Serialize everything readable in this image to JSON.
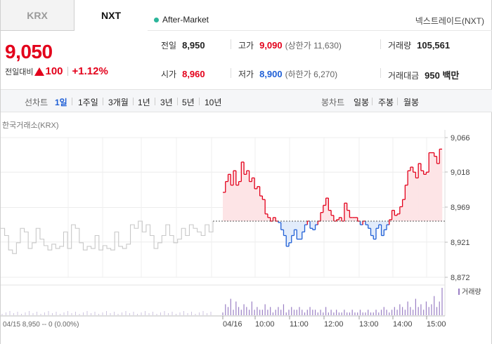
{
  "tabs": {
    "krx": "KRX",
    "nxt": "NXT"
  },
  "session": {
    "label": "After-Market"
  },
  "source_label": "넥스트레이드(NXT)",
  "price": {
    "current": "9,050",
    "change_label": "전일대비",
    "change_amount": "100",
    "change_percent": "+1.12%"
  },
  "stats": {
    "prev_close": {
      "label": "전일",
      "value": "8,950"
    },
    "open": {
      "label": "시가",
      "value": "8,960"
    },
    "high": {
      "label": "고가",
      "value": "9,090",
      "limit": "(상한가 11,630)"
    },
    "low": {
      "label": "저가",
      "value": "8,900",
      "limit": "(하한가 6,270)"
    },
    "volume": {
      "label": "거래량",
      "value": "105,561"
    },
    "amount": {
      "label": "거래대금",
      "value": "950 백만"
    }
  },
  "period_bar": {
    "line_label": "선차트",
    "line_periods": [
      "1일",
      "1주일",
      "3개월",
      "1년",
      "3년",
      "5년",
      "10년"
    ],
    "active_period": "1일",
    "candle_label": "봉차트",
    "candle_periods": [
      "일봉",
      "주봉",
      "월봉"
    ]
  },
  "chart_caption": "한국거래소(KRX)",
  "colors": {
    "up": "#e3001b",
    "down": "#1f5fd6",
    "prev_day_line": "#c8c8c8",
    "volume": "#9a7fc4"
  },
  "chart_data": {
    "type": "line",
    "baseline_value": 8950,
    "ylim": [
      8872,
      9066
    ],
    "y_ticks": [
      "9,066",
      "9,018",
      "8,969",
      "8,921",
      "8,872"
    ],
    "x_ticks": [
      "04/16",
      "10:00",
      "11:00",
      "12:00",
      "13:00",
      "14:00",
      "15:00"
    ],
    "volume_label": "거래량",
    "prev_day_info": "04/15  8,950 -- 0 (0.00%)",
    "prev_day_series": [
      8940,
      8930,
      8910,
      8905,
      8920,
      8940,
      8935,
      8912,
      8920,
      8940,
      8925,
      8916,
      8910,
      8918,
      8912,
      8915,
      8935,
      8912,
      8945,
      8940,
      8920,
      8910,
      8915,
      8912,
      8930,
      8910,
      8916,
      8912,
      8910,
      8935,
      8915,
      8912,
      8918,
      8945,
      8940,
      8950,
      8935,
      8945,
      8930,
      8912,
      8920,
      8930,
      8945,
      8930,
      8920,
      8925,
      8940,
      8930,
      8945,
      8940,
      8935,
      8930,
      8945,
      8935,
      8950
    ],
    "series": [
      {
        "name": "",
        "values": [
          8990,
          9005,
          9015,
          9000,
          9020,
          9000,
          9005,
          9032,
          9015,
          9020,
          9005,
          9010,
          8995,
          8998,
          8985,
          8980,
          8960,
          8955,
          8950,
          8955,
          8950,
          8948,
          8938,
          8930,
          8915,
          8920,
          8930,
          8938,
          8925,
          8925,
          8935,
          8945,
          8950,
          8940,
          8938,
          8945,
          8950,
          8962,
          8972,
          8982,
          8965,
          8958,
          8950,
          8952,
          8955,
          8950,
          8975,
          8965,
          8955,
          8955,
          8955,
          8950,
          8945,
          8950,
          8945,
          8940,
          8930,
          8925,
          8940,
          8945,
          8930,
          8938,
          8945,
          8952,
          8965,
          8958,
          8960,
          8970,
          8980,
          9000,
          9020,
          9025,
          9018,
          9010,
          9030,
          9020,
          9015,
          9018,
          9045,
          9045,
          9040,
          9030,
          9050,
          9050
        ]
      }
    ],
    "volume": [
      0.1,
      0.4,
      0.3,
      0.6,
      0.2,
      0.5,
      0.3,
      0.2,
      0.4,
      0.3,
      0.2,
      0.5,
      0.2,
      0.3,
      0.2,
      0.2,
      0.4,
      0.2,
      0.3,
      0.1,
      0.2,
      0.3,
      0.2,
      0.4,
      0.1,
      0.2,
      0.3,
      0.2,
      0.2,
      0.3,
      0.2,
      0.1,
      0.2,
      0.3,
      0.2,
      0.2,
      0.1,
      0.2,
      0.1,
      0.3,
      0.1,
      0.2,
      0.1,
      0.2,
      0.1,
      0.1,
      0.2,
      0.1,
      0.1,
      0.2,
      0.1,
      0.1,
      0.2,
      0.1,
      0.1,
      0.2,
      0.1,
      0.1,
      0.2,
      0.1,
      0.2,
      0.3,
      0.2,
      0.1,
      0.2,
      0.3,
      0.2,
      0.4,
      0.3,
      0.2,
      0.5,
      0.3,
      0.2,
      0.6,
      0.3,
      0.4,
      0.2,
      0.5,
      0.3,
      0.4,
      0.7,
      0.3,
      0.5,
      1.0
    ]
  }
}
